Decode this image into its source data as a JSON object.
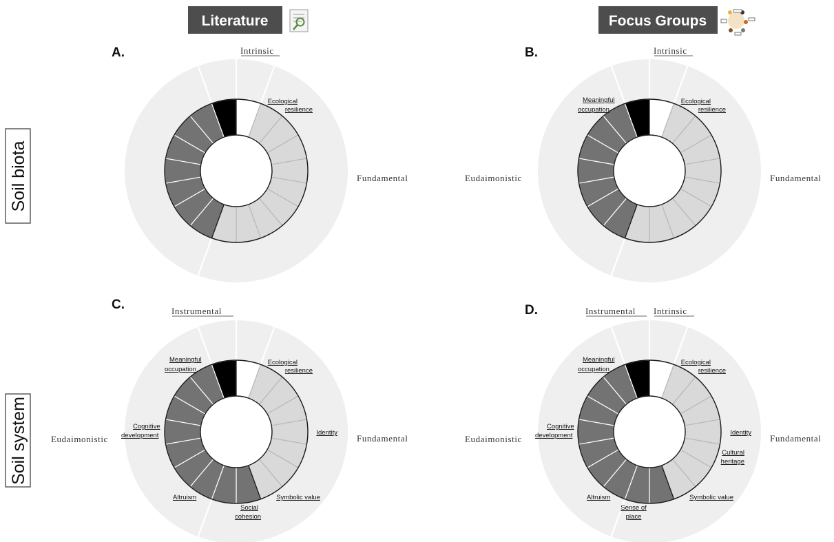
{
  "headers": {
    "literature": "Literature",
    "focus_groups": "Focus Groups"
  },
  "row_labels": {
    "top": "Soil biota",
    "bottom": "Soil system"
  },
  "colors": {
    "outer_ring": "#efefef",
    "black_segment": "#000000",
    "white_segment": "#ffffff",
    "light_segment": "#d9d9d9",
    "dark_segment": "#737373",
    "header_box": "#4d4d4d"
  },
  "panels": [
    {
      "letter": "A.",
      "labels": {
        "intrinsic": "Intrinsic",
        "fundamental": "Fundamental"
      },
      "segment_labels": [
        {
          "lines": [
            "Ecological",
            "resilience"
          ]
        }
      ]
    },
    {
      "letter": "B.",
      "labels": {
        "intrinsic": "Intrinsic",
        "fundamental": "Fundamental",
        "eudaimonistic": "Eudaimonistic"
      },
      "segment_labels": [
        {
          "lines": [
            "Ecological",
            "resilience"
          ]
        },
        {
          "lines": [
            "Meaningful",
            "occupation"
          ]
        }
      ]
    },
    {
      "letter": "C.",
      "labels": {
        "instrumental": "Instrumental",
        "fundamental": "Fundamental",
        "eudaimonistic": "Eudaimonistic"
      },
      "segment_labels": [
        {
          "lines": [
            "Ecological",
            "resilience"
          ]
        },
        {
          "lines": [
            "Identity"
          ]
        },
        {
          "lines": [
            "Symbolic value"
          ]
        },
        {
          "lines": [
            "Social",
            "cohesion"
          ]
        },
        {
          "lines": [
            "Altruism"
          ]
        },
        {
          "lines": [
            "Cognitive",
            "development"
          ]
        },
        {
          "lines": [
            "Meaningful",
            "occupation"
          ]
        }
      ]
    },
    {
      "letter": "D.",
      "labels": {
        "instrumental": "Instrumental",
        "intrinsic": "Intrinsic",
        "fundamental": "Fundamental",
        "eudaimonistic": "Eudaimonistic"
      },
      "segment_labels": [
        {
          "lines": [
            "Ecological",
            "resilience"
          ]
        },
        {
          "lines": [
            "Identity"
          ]
        },
        {
          "lines": [
            "Cultural",
            "heritage"
          ]
        },
        {
          "lines": [
            "Symbolic value"
          ]
        },
        {
          "lines": [
            "Sense of",
            "place"
          ]
        },
        {
          "lines": [
            "Altruism"
          ]
        },
        {
          "lines": [
            "Cognitive",
            "development"
          ]
        },
        {
          "lines": [
            "Meaningful",
            "occupation"
          ]
        }
      ]
    }
  ]
}
